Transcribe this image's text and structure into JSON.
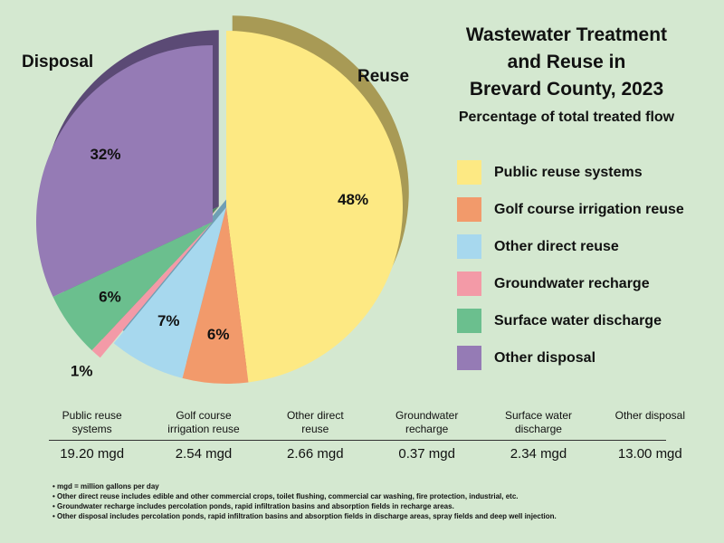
{
  "title_lines": [
    "Wastewater Treatment",
    "and Reuse in",
    "Brevard County, 2023"
  ],
  "subtitle": "Percentage of total treated flow",
  "group_labels": {
    "disposal": "Disposal",
    "reuse": "Reuse"
  },
  "chart_data": {
    "type": "pie",
    "title": "Wastewater Treatment and Reuse in Brevard County, 2023",
    "subtitle": "Percentage of total treated flow",
    "legend_position": "right",
    "categories": [
      "Public reuse systems",
      "Golf course irrigation reuse",
      "Other direct reuse",
      "Groundwater recharge",
      "Surface water discharge",
      "Other disposal"
    ],
    "values": [
      48,
      6,
      7,
      1,
      6,
      32
    ],
    "labels": [
      "48%",
      "6%",
      "7%",
      "1%",
      "6%",
      "32%"
    ],
    "flows_mgd": [
      19.2,
      2.54,
      2.66,
      0.37,
      2.34,
      13.0
    ],
    "colors": [
      "#fde983",
      "#f29a6b",
      "#a7d8ee",
      "#f39aa7",
      "#6bbf8e",
      "#957bb5"
    ],
    "side_colors": [
      "#a89a55",
      "#a96a4a",
      "#6f9fb4",
      "#a4656e",
      "#4c8a66",
      "#5b4a75"
    ],
    "groups": {
      "reuse": [
        0,
        1,
        2
      ],
      "disposal": [
        3,
        4,
        5
      ]
    }
  },
  "stats": {
    "headers": [
      [
        "Public reuse",
        "systems"
      ],
      [
        "Golf course",
        "irrigation reuse"
      ],
      [
        "Other direct",
        "reuse"
      ],
      [
        "Groundwater",
        "recharge"
      ],
      [
        "Surface water",
        "discharge"
      ],
      [
        "Other disposal",
        ""
      ]
    ],
    "values": [
      "19.20 mgd",
      "2.54 mgd",
      "2.66 mgd",
      "0.37 mgd",
      "2.34 mgd",
      "13.00 mgd"
    ]
  },
  "notes": [
    "mgd = million gallons per day",
    "Other direct reuse includes edible and other commercial crops, toilet flushing, commercial car washing, fire protection, industrial, etc.",
    "Groundwater recharge includes percolation ponds, rapid infiltration basins and absorption fields in recharge areas.",
    "Other disposal includes percolation ponds, rapid infiltration basins and absorption fields in discharge areas, spray fields and deep well injection."
  ]
}
